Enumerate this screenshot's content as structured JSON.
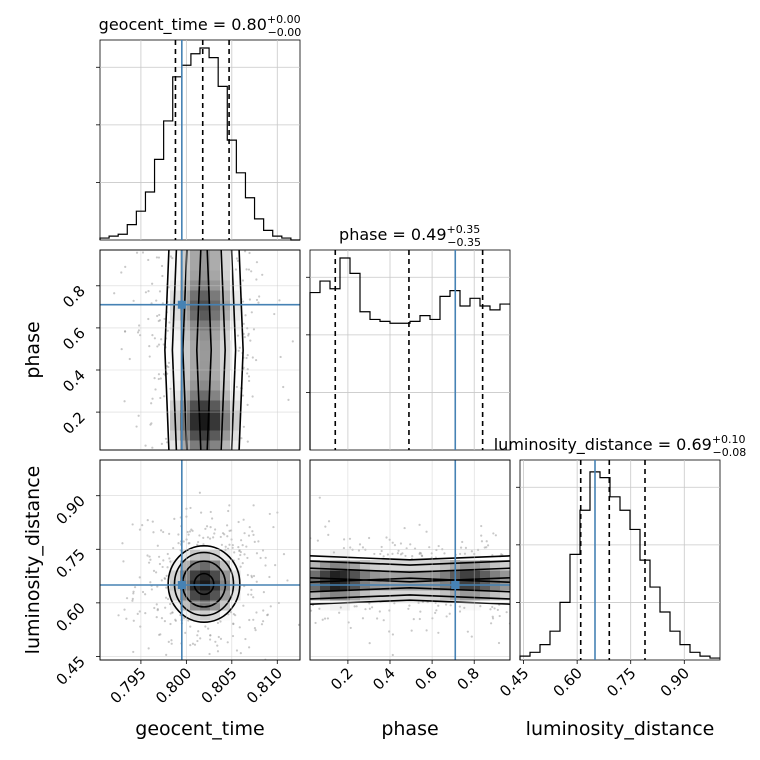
{
  "chart_data": {
    "type": "corner",
    "parameters": [
      "geocent_time",
      "phase",
      "luminosity_distance"
    ],
    "truths": {
      "geocent_time": 0.7995,
      "phase": 0.71,
      "luminosity_distance": 0.65
    },
    "titles": [
      {
        "param": "geocent_time",
        "median": "0.80",
        "plus": "+0.00",
        "minus": "−0.00"
      },
      {
        "param": "phase",
        "median": "0.49",
        "plus": "+0.35",
        "minus": "−0.35"
      },
      {
        "param": "luminosity_distance",
        "median": "0.69",
        "plus": "+0.10",
        "minus": "−0.08"
      }
    ],
    "ranges": {
      "geocent_time": [
        0.7905,
        0.8125
      ],
      "phase": [
        0.02,
        0.97
      ],
      "luminosity_distance": [
        0.44,
        1.0
      ]
    },
    "ticks": {
      "geocent_time": [
        "0.795",
        "0.800",
        "0.805",
        "0.810"
      ],
      "phase": [
        "0.2",
        "0.4",
        "0.6",
        "0.8"
      ],
      "luminosity_distance": [
        "0.45",
        "0.60",
        "0.75",
        "0.90"
      ]
    },
    "quantiles": {
      "geocent_time": [
        0.7988,
        0.8018,
        0.8047
      ],
      "phase": [
        0.14,
        0.49,
        0.84
      ],
      "luminosity_distance": [
        0.61,
        0.69,
        0.79
      ]
    },
    "hist_geocent_time": {
      "bin_start": 0.7905,
      "bin_width": 0.001,
      "counts": [
        0.01,
        0.02,
        0.03,
        0.08,
        0.15,
        0.25,
        0.42,
        0.62,
        0.85,
        0.91,
        0.97,
        1.0,
        0.95,
        0.8,
        0.52,
        0.35,
        0.22,
        0.11,
        0.05,
        0.02,
        0.01,
        0.0
      ]
    },
    "hist_phase": {
      "bin_start": 0.02,
      "bin_width": 0.0475,
      "counts": [
        0.82,
        0.88,
        0.84,
        1.0,
        0.92,
        0.72,
        0.68,
        0.67,
        0.66,
        0.66,
        0.67,
        0.7,
        0.68,
        0.8,
        0.83,
        0.75,
        0.79,
        0.75,
        0.73,
        0.76
      ]
    },
    "hist_luminosity_distance": {
      "bin_start": 0.44,
      "bin_width": 0.028,
      "counts": [
        0.02,
        0.04,
        0.08,
        0.15,
        0.3,
        0.55,
        0.78,
        0.98,
        0.95,
        0.85,
        0.78,
        0.68,
        0.52,
        0.38,
        0.25,
        0.15,
        0.08,
        0.04,
        0.02,
        0.01
      ]
    }
  }
}
